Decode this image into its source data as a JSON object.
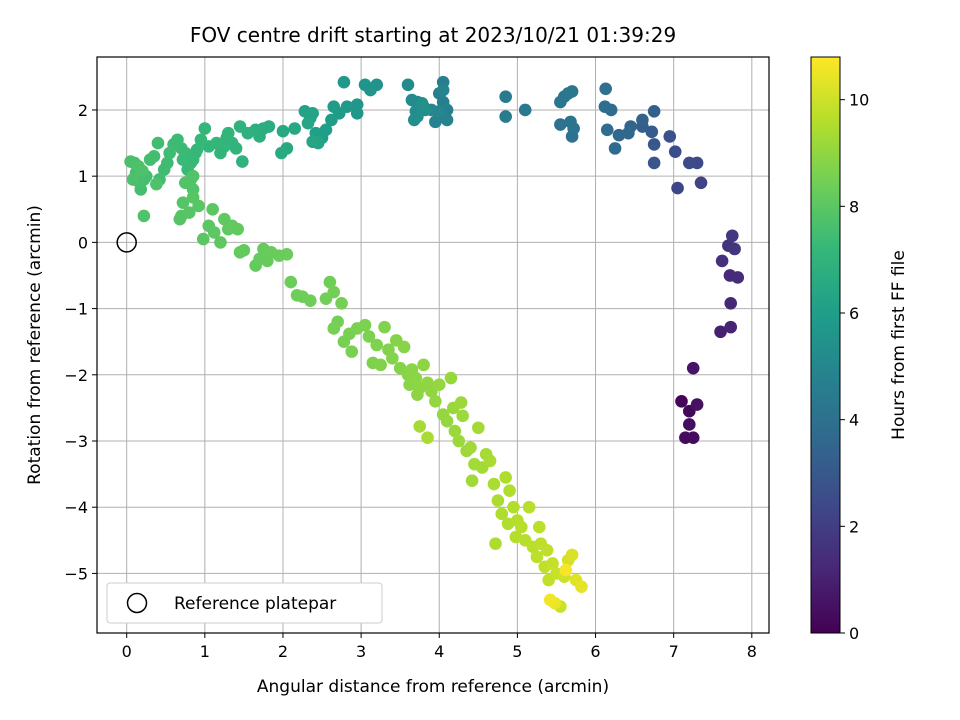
{
  "chart_data": {
    "type": "scatter",
    "title": "FOV centre drift starting at 2023/10/21 01:39:29",
    "xlabel": "Angular distance from reference (arcmin)",
    "ylabel": "Rotation from reference (arcmin)",
    "xlim": [
      -0.38,
      8.22
    ],
    "ylim": [
      -5.9,
      2.8
    ],
    "x_ticks": [
      0,
      1,
      2,
      3,
      4,
      5,
      6,
      7,
      8
    ],
    "y_ticks": [
      -5,
      -4,
      -3,
      -2,
      -1,
      0,
      1,
      2
    ],
    "grid": true,
    "legend": {
      "placement": "lower-left",
      "entries": [
        "Reference platepar"
      ]
    },
    "reference_point": {
      "x": 0,
      "y": 0
    },
    "colorbar": {
      "label": "Hours from first FF file",
      "range": [
        0,
        10.8
      ],
      "ticks": [
        0,
        2,
        4,
        6,
        8,
        10
      ],
      "colormap": "viridis",
      "colors": [
        "#440154",
        "#482777",
        "#3e4989",
        "#31688e",
        "#26828e",
        "#1f9e89",
        "#35b779",
        "#6ece58",
        "#b5de2b",
        "#fde725"
      ]
    },
    "points": [
      [
        7.1,
        -2.4,
        0.1
      ],
      [
        7.2,
        -2.55,
        0.2
      ],
      [
        7.15,
        -2.95,
        0.3
      ],
      [
        7.25,
        -2.95,
        0.35
      ],
      [
        7.2,
        -2.75,
        0.4
      ],
      [
        7.3,
        -2.45,
        0.5
      ],
      [
        7.25,
        -1.9,
        0.6
      ],
      [
        7.6,
        -1.35,
        1.0
      ],
      [
        7.73,
        -1.28,
        1.1
      ],
      [
        7.73,
        -0.92,
        1.2
      ],
      [
        7.72,
        -0.5,
        1.3
      ],
      [
        7.82,
        -0.53,
        1.4
      ],
      [
        7.62,
        -0.28,
        1.5
      ],
      [
        7.7,
        -0.05,
        1.6
      ],
      [
        7.78,
        -0.1,
        1.7
      ],
      [
        7.75,
        0.1,
        1.8
      ],
      [
        7.35,
        0.9,
        2.2
      ],
      [
        7.05,
        0.82,
        2.3
      ],
      [
        7.3,
        1.2,
        2.4
      ],
      [
        7.2,
        1.2,
        2.5
      ],
      [
        7.02,
        1.37,
        2.6
      ],
      [
        6.95,
        1.6,
        2.7
      ],
      [
        6.75,
        1.2,
        2.9
      ],
      [
        6.75,
        1.48,
        3.0
      ],
      [
        6.72,
        1.67,
        3.1
      ],
      [
        6.6,
        1.75,
        3.2
      ],
      [
        6.75,
        1.98,
        3.3
      ],
      [
        6.6,
        1.85,
        3.4
      ],
      [
        6.45,
        1.75,
        3.5
      ],
      [
        6.42,
        1.65,
        3.6
      ],
      [
        6.3,
        1.62,
        3.65
      ],
      [
        6.25,
        1.42,
        3.7
      ],
      [
        6.15,
        1.7,
        3.8
      ],
      [
        6.2,
        2.0,
        3.85
      ],
      [
        6.12,
        2.05,
        3.9
      ],
      [
        6.13,
        2.32,
        3.95
      ],
      [
        5.7,
        1.6,
        4.0
      ],
      [
        5.55,
        1.78,
        4.05
      ],
      [
        5.72,
        1.72,
        4.1
      ],
      [
        5.68,
        1.82,
        4.15
      ],
      [
        5.55,
        2.12,
        4.2
      ],
      [
        5.6,
        2.2,
        4.25
      ],
      [
        5.7,
        2.28,
        4.3
      ],
      [
        5.65,
        2.25,
        4.35
      ],
      [
        5.1,
        2.0,
        4.4
      ],
      [
        4.85,
        2.2,
        4.45
      ],
      [
        4.85,
        1.9,
        4.5
      ],
      [
        4.05,
        2.42,
        4.55
      ],
      [
        4.0,
        2.25,
        4.6
      ],
      [
        4.05,
        2.12,
        4.65
      ],
      [
        4.1,
        2.0,
        4.7
      ],
      [
        4.0,
        1.9,
        4.75
      ],
      [
        3.95,
        1.82,
        4.8
      ],
      [
        4.1,
        1.85,
        4.85
      ],
      [
        4.05,
        2.3,
        4.9
      ],
      [
        4.0,
        1.98,
        4.95
      ],
      [
        3.9,
        2.0,
        5.0
      ],
      [
        3.8,
        2.05,
        5.05
      ],
      [
        3.72,
        2.12,
        5.1
      ],
      [
        3.65,
        2.15,
        5.15
      ],
      [
        3.6,
        2.38,
        5.2
      ],
      [
        3.7,
        1.98,
        5.25
      ],
      [
        3.68,
        1.85,
        5.3
      ],
      [
        3.72,
        1.9,
        5.35
      ],
      [
        3.78,
        2.1,
        5.4
      ],
      [
        3.82,
        2.0,
        5.45
      ],
      [
        3.2,
        2.38,
        5.5
      ],
      [
        3.12,
        2.3,
        5.55
      ],
      [
        3.05,
        2.38,
        5.6
      ],
      [
        2.95,
        2.08,
        5.65
      ],
      [
        2.95,
        1.95,
        5.7
      ],
      [
        2.78,
        2.42,
        5.75
      ],
      [
        2.82,
        2.05,
        5.8
      ],
      [
        2.72,
        1.95,
        5.85
      ],
      [
        2.65,
        2.05,
        5.9
      ],
      [
        2.62,
        1.85,
        5.95
      ],
      [
        2.55,
        1.7,
        6.0
      ],
      [
        2.5,
        1.58,
        6.05
      ],
      [
        2.42,
        1.65,
        6.1
      ],
      [
        2.35,
        1.88,
        6.15
      ],
      [
        2.28,
        1.98,
        6.2
      ],
      [
        2.38,
        1.95,
        6.25
      ],
      [
        2.45,
        1.5,
        6.3
      ],
      [
        2.38,
        1.52,
        6.35
      ],
      [
        2.32,
        1.8,
        6.4
      ],
      [
        2.15,
        1.72,
        6.45
      ],
      [
        2.0,
        1.68,
        6.5
      ],
      [
        2.05,
        1.42,
        6.55
      ],
      [
        1.98,
        1.35,
        6.6
      ],
      [
        1.82,
        1.75,
        6.65
      ],
      [
        1.75,
        1.72,
        6.7
      ],
      [
        1.7,
        1.6,
        6.75
      ],
      [
        1.65,
        1.7,
        6.8
      ],
      [
        1.55,
        1.65,
        6.85
      ],
      [
        1.48,
        1.22,
        6.9
      ],
      [
        1.45,
        1.75,
        6.95
      ],
      [
        1.4,
        1.42,
        7.0
      ],
      [
        1.35,
        1.5,
        7.02
      ],
      [
        1.3,
        1.65,
        7.04
      ],
      [
        1.28,
        1.58,
        7.06
      ],
      [
        1.25,
        1.45,
        7.08
      ],
      [
        1.2,
        1.35,
        7.1
      ],
      [
        1.15,
        1.5,
        7.12
      ],
      [
        1.05,
        1.45,
        7.14
      ],
      [
        1.0,
        1.72,
        7.16
      ],
      [
        0.95,
        1.55,
        7.18
      ],
      [
        0.9,
        1.4,
        7.2
      ],
      [
        0.88,
        1.35,
        7.22
      ],
      [
        0.85,
        1.25,
        7.24
      ],
      [
        0.82,
        1.2,
        7.26
      ],
      [
        0.78,
        1.1,
        7.28
      ],
      [
        0.75,
        1.35,
        7.3
      ],
      [
        0.72,
        1.25,
        7.32
      ],
      [
        0.7,
        1.42,
        7.34
      ],
      [
        0.65,
        1.55,
        7.36
      ],
      [
        0.6,
        1.48,
        7.38
      ],
      [
        0.55,
        1.35,
        7.4
      ],
      [
        0.52,
        1.2,
        7.42
      ],
      [
        0.48,
        1.1,
        7.44
      ],
      [
        0.42,
        0.95,
        7.46
      ],
      [
        0.4,
        1.5,
        7.48
      ],
      [
        0.35,
        1.3,
        7.5
      ],
      [
        0.3,
        1.25,
        7.52
      ],
      [
        0.25,
        1.0,
        7.54
      ],
      [
        0.22,
        0.95,
        7.56
      ],
      [
        0.18,
        0.8,
        7.58
      ],
      [
        0.15,
        0.92,
        7.6
      ],
      [
        0.12,
        1.05,
        7.62
      ],
      [
        0.1,
        1.2,
        7.64
      ],
      [
        0.05,
        1.22,
        7.66
      ],
      [
        0.08,
        0.95,
        7.68
      ],
      [
        0.15,
        1.15,
        7.7
      ],
      [
        0.2,
        1.08,
        7.72
      ],
      [
        0.38,
        0.88,
        7.74
      ],
      [
        0.22,
        0.4,
        7.76
      ],
      [
        0.85,
        1.0,
        7.78
      ],
      [
        0.85,
        0.8,
        7.8
      ],
      [
        0.82,
        0.95,
        7.82
      ],
      [
        0.75,
        0.9,
        7.84
      ],
      [
        0.7,
        0.4,
        7.86
      ],
      [
        0.72,
        0.6,
        7.88
      ],
      [
        0.68,
        0.35,
        7.9
      ],
      [
        0.8,
        0.45,
        7.92
      ],
      [
        0.85,
        0.68,
        7.94
      ],
      [
        0.92,
        0.55,
        7.96
      ],
      [
        0.98,
        0.05,
        7.98
      ],
      [
        1.05,
        0.25,
        8.0
      ],
      [
        1.1,
        0.5,
        8.02
      ],
      [
        1.12,
        0.15,
        8.04
      ],
      [
        1.2,
        0.0,
        8.06
      ],
      [
        1.25,
        0.35,
        8.08
      ],
      [
        1.3,
        0.2,
        8.1
      ],
      [
        1.35,
        0.25,
        8.12
      ],
      [
        1.42,
        0.2,
        8.14
      ],
      [
        1.45,
        -0.15,
        8.16
      ],
      [
        1.5,
        -0.12,
        8.18
      ],
      [
        1.65,
        -0.35,
        8.2
      ],
      [
        1.7,
        -0.25,
        8.22
      ],
      [
        1.75,
        -0.1,
        8.24
      ],
      [
        1.8,
        -0.28,
        8.26
      ],
      [
        1.85,
        -0.15,
        8.28
      ],
      [
        1.95,
        -0.2,
        8.3
      ],
      [
        2.05,
        -0.18,
        8.32
      ],
      [
        2.1,
        -0.6,
        8.34
      ],
      [
        2.18,
        -0.8,
        8.36
      ],
      [
        2.25,
        -0.82,
        8.38
      ],
      [
        2.35,
        -0.88,
        8.4
      ],
      [
        2.6,
        -0.6,
        8.42
      ],
      [
        2.55,
        -0.85,
        8.44
      ],
      [
        2.65,
        -0.75,
        8.46
      ],
      [
        2.7,
        -1.2,
        8.48
      ],
      [
        2.75,
        -0.92,
        8.5
      ],
      [
        2.65,
        -1.3,
        8.52
      ],
      [
        2.78,
        -1.5,
        8.54
      ],
      [
        2.85,
        -1.38,
        8.56
      ],
      [
        2.88,
        -1.65,
        8.58
      ],
      [
        2.95,
        -1.3,
        8.6
      ],
      [
        3.05,
        -1.25,
        8.62
      ],
      [
        3.1,
        -1.42,
        8.64
      ],
      [
        3.15,
        -1.82,
        8.66
      ],
      [
        3.2,
        -1.55,
        8.68
      ],
      [
        3.25,
        -1.85,
        8.7
      ],
      [
        3.3,
        -1.28,
        8.72
      ],
      [
        3.35,
        -1.62,
        8.74
      ],
      [
        3.4,
        -1.75,
        8.76
      ],
      [
        3.45,
        -1.48,
        8.78
      ],
      [
        3.5,
        -1.9,
        8.8
      ],
      [
        3.55,
        -1.58,
        8.82
      ],
      [
        3.6,
        -2.0,
        8.84
      ],
      [
        3.62,
        -2.15,
        8.86
      ],
      [
        3.65,
        -1.92,
        8.88
      ],
      [
        3.7,
        -2.05,
        8.9
      ],
      [
        3.72,
        -2.3,
        8.92
      ],
      [
        3.75,
        -2.2,
        8.94
      ],
      [
        3.8,
        -1.85,
        8.96
      ],
      [
        3.85,
        -2.12,
        8.98
      ],
      [
        3.9,
        -2.25,
        9.0
      ],
      [
        3.95,
        -2.4,
        9.02
      ],
      [
        4.0,
        -2.15,
        9.04
      ],
      [
        4.05,
        -2.6,
        9.06
      ],
      [
        4.1,
        -2.7,
        9.08
      ],
      [
        4.15,
        -2.05,
        9.1
      ],
      [
        4.18,
        -2.5,
        9.12
      ],
      [
        4.2,
        -2.85,
        9.14
      ],
      [
        4.25,
        -3.0,
        9.16
      ],
      [
        4.28,
        -2.42,
        9.18
      ],
      [
        4.3,
        -2.62,
        9.2
      ],
      [
        4.35,
        -3.15,
        9.22
      ],
      [
        4.4,
        -3.1,
        9.24
      ],
      [
        4.42,
        -3.6,
        9.26
      ],
      [
        4.45,
        -3.35,
        9.28
      ],
      [
        4.5,
        -2.8,
        9.3
      ],
      [
        4.55,
        -3.4,
        9.32
      ],
      [
        4.6,
        -3.2,
        9.34
      ],
      [
        3.75,
        -2.78,
        9.36
      ],
      [
        3.85,
        -2.95,
        9.38
      ],
      [
        4.65,
        -3.3,
        9.4
      ],
      [
        4.7,
        -3.65,
        9.42
      ],
      [
        4.72,
        -4.55,
        9.44
      ],
      [
        4.75,
        -3.9,
        9.46
      ],
      [
        4.8,
        -4.1,
        9.48
      ],
      [
        4.85,
        -3.55,
        9.5
      ],
      [
        4.88,
        -4.25,
        9.52
      ],
      [
        4.9,
        -3.75,
        9.54
      ],
      [
        4.95,
        -4.0,
        9.56
      ],
      [
        4.98,
        -4.45,
        9.58
      ],
      [
        5.0,
        -4.2,
        9.6
      ],
      [
        5.05,
        -4.3,
        9.62
      ],
      [
        5.1,
        -4.5,
        9.64
      ],
      [
        5.15,
        -4.0,
        9.66
      ],
      [
        5.2,
        -4.6,
        9.68
      ],
      [
        5.25,
        -4.75,
        9.7
      ],
      [
        5.28,
        -4.3,
        9.72
      ],
      [
        5.3,
        -4.55,
        9.74
      ],
      [
        5.35,
        -4.9,
        9.76
      ],
      [
        5.38,
        -4.65,
        9.78
      ],
      [
        5.4,
        -5.1,
        9.8
      ],
      [
        5.45,
        -4.85,
        9.85
      ],
      [
        5.5,
        -5.0,
        9.9
      ],
      [
        5.55,
        -5.5,
        9.95
      ],
      [
        5.6,
        -5.05,
        10.0
      ],
      [
        5.65,
        -4.8,
        10.1
      ],
      [
        5.7,
        -4.72,
        10.2
      ],
      [
        5.75,
        -5.1,
        10.3
      ],
      [
        5.82,
        -5.2,
        10.4
      ],
      [
        5.48,
        -5.45,
        10.5
      ],
      [
        5.42,
        -5.4,
        10.6
      ],
      [
        5.62,
        -4.95,
        10.7
      ]
    ]
  }
}
